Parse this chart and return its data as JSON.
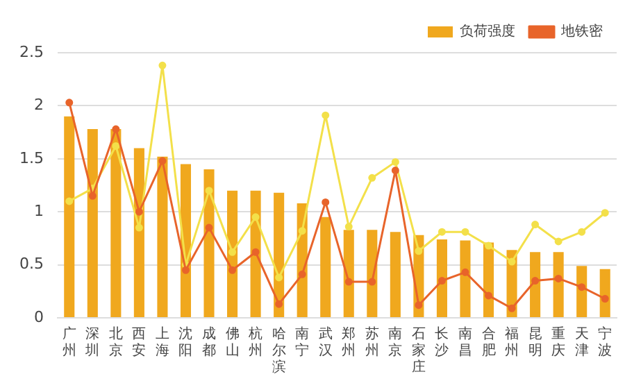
{
  "chart_data": {
    "type": "bar",
    "categories": [
      "广州",
      "深圳",
      "北京",
      "西安",
      "上海",
      "沈阳",
      "成都",
      "佛山",
      "杭州",
      "哈尔滨",
      "南宁",
      "武汉",
      "郑州",
      "苏州",
      "南京",
      "石家庄",
      "长沙",
      "南昌",
      "合肥",
      "福州",
      "昆明",
      "重庆",
      "天津",
      "宁波"
    ],
    "series": [
      {
        "name": "负荷强度",
        "color": "#f0a81e",
        "values": [
          1.9,
          1.78,
          1.78,
          1.6,
          1.52,
          1.45,
          1.4,
          1.2,
          1.2,
          1.18,
          1.08,
          0.95,
          0.83,
          0.83,
          0.81,
          0.78,
          0.74,
          0.73,
          0.71,
          0.64,
          0.62,
          0.62,
          0.49,
          0.46
        ]
      },
      {
        "name": "地铁密",
        "type": "line",
        "color": "#e8642a",
        "marker": "circle",
        "values": [
          2.03,
          1.15,
          1.78,
          1.0,
          1.48,
          0.45,
          0.85,
          0.45,
          0.62,
          0.13,
          0.41,
          1.09,
          0.34,
          0.34,
          1.39,
          0.12,
          0.35,
          0.43,
          0.21,
          0.09,
          0.35,
          0.37,
          0.29,
          0.18
        ]
      },
      {
        "type": "line",
        "color": "#f3e04a",
        "marker": "circle",
        "values": [
          1.1,
          1.22,
          1.62,
          0.85,
          2.38,
          0.5,
          1.2,
          0.62,
          0.95,
          0.38,
          0.82,
          1.91,
          0.86,
          1.32,
          1.47,
          0.63,
          0.81,
          0.81,
          0.68,
          0.53,
          0.88,
          0.72,
          0.81,
          0.99
        ]
      }
    ],
    "ylim": [
      0,
      2.5
    ],
    "yticks": [
      0,
      0.5,
      1,
      1.5,
      2,
      2.5
    ],
    "grid": "y",
    "legend": "top right"
  }
}
